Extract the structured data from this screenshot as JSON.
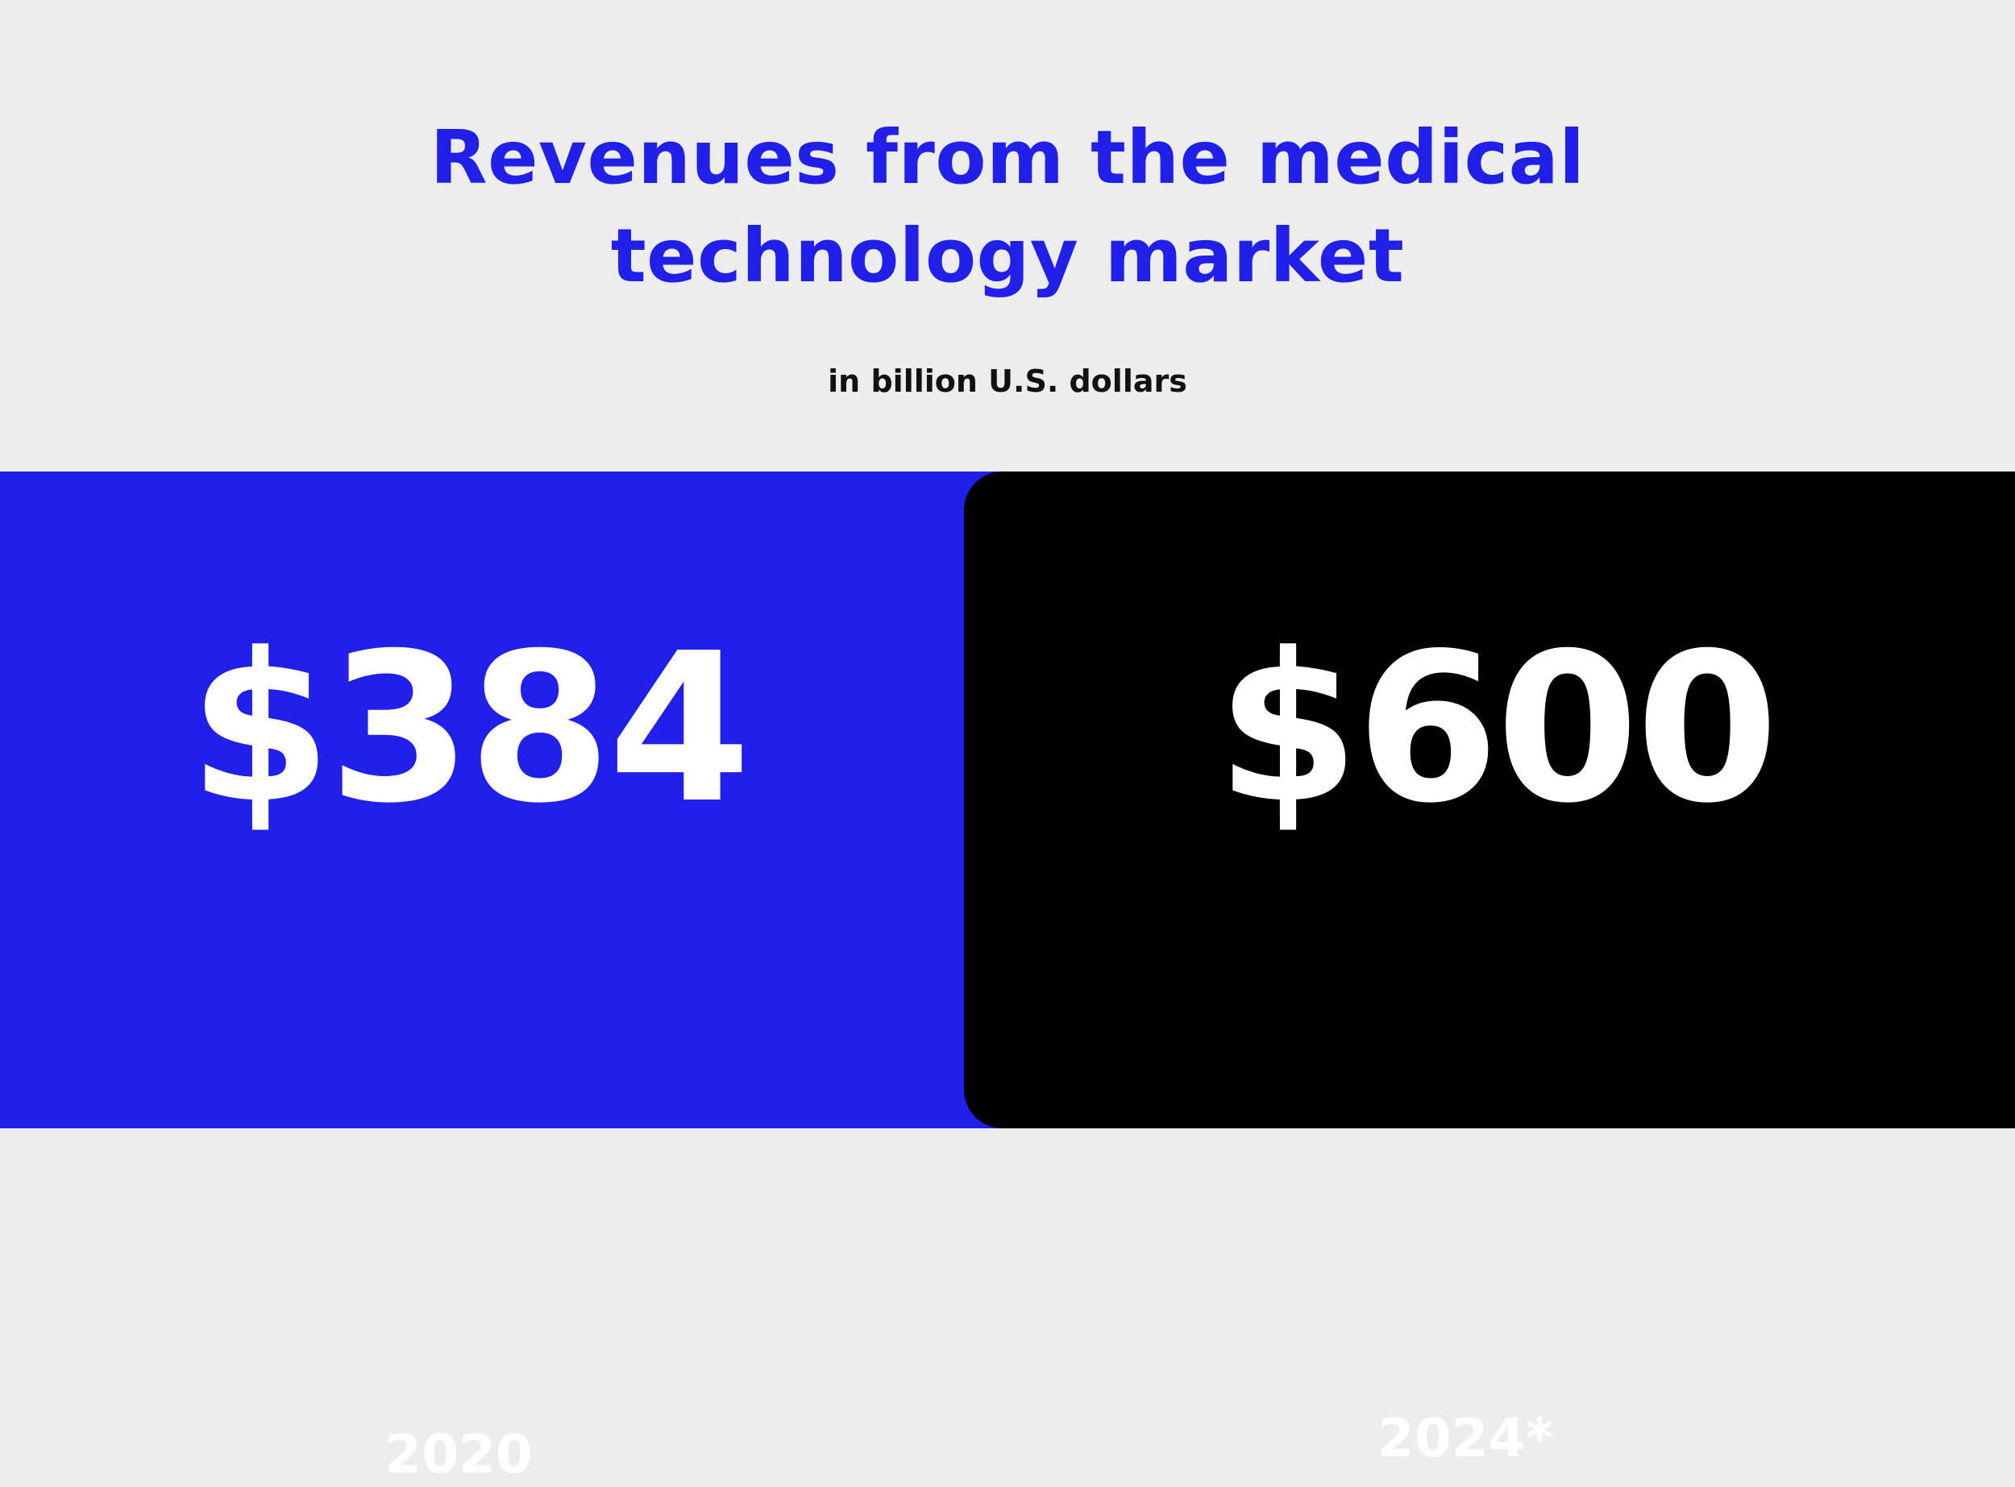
{
  "chart_data": {
    "type": "bar",
    "title": "Revenues from the medical technology market",
    "subtitle": "in billion U.S. dollars",
    "categories": [
      "2020",
      "2024*"
    ],
    "values": [
      384,
      600
    ],
    "value_labels": [
      "$384",
      "$600"
    ],
    "colors": {
      "background": "#ededed",
      "title": "#2020e8",
      "panel_2020": "#2020e8",
      "panel_2024": "#000000",
      "text_on_panels": "#ffffff"
    }
  }
}
